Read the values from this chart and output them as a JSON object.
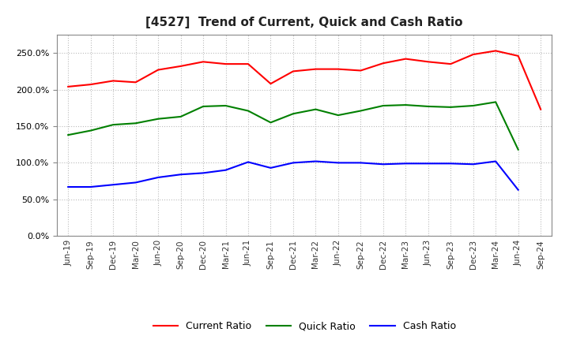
{
  "title": "[4527]  Trend of Current, Quick and Cash Ratio",
  "labels": [
    "Jun-19",
    "Sep-19",
    "Dec-19",
    "Mar-20",
    "Jun-20",
    "Sep-20",
    "Dec-20",
    "Mar-21",
    "Jun-21",
    "Sep-21",
    "Dec-21",
    "Mar-22",
    "Jun-22",
    "Sep-22",
    "Dec-22",
    "Mar-23",
    "Jun-23",
    "Sep-23",
    "Dec-23",
    "Mar-24",
    "Jun-24",
    "Sep-24"
  ],
  "current_ratio": [
    2.04,
    2.07,
    2.12,
    2.1,
    2.27,
    2.32,
    2.38,
    2.35,
    2.35,
    2.08,
    2.25,
    2.28,
    2.28,
    2.26,
    2.36,
    2.42,
    2.38,
    2.35,
    2.48,
    2.53,
    2.46,
    1.73
  ],
  "quick_ratio": [
    1.38,
    1.44,
    1.52,
    1.54,
    1.6,
    1.63,
    1.77,
    1.78,
    1.71,
    1.55,
    1.67,
    1.73,
    1.65,
    1.71,
    1.78,
    1.79,
    1.77,
    1.76,
    1.78,
    1.83,
    1.18,
    null
  ],
  "cash_ratio": [
    0.67,
    0.67,
    0.7,
    0.73,
    0.8,
    0.84,
    0.86,
    0.9,
    1.01,
    0.93,
    1.0,
    1.02,
    1.0,
    1.0,
    0.98,
    0.99,
    0.99,
    0.99,
    0.98,
    1.02,
    0.63,
    null
  ],
  "ylim": [
    0.0,
    2.75
  ],
  "yticks": [
    0.0,
    0.5,
    1.0,
    1.5,
    2.0,
    2.5
  ],
  "colors": {
    "current": "#ff0000",
    "quick": "#008000",
    "cash": "#0000ff"
  },
  "background_color": "#ffffff",
  "plot_bg_color": "#ffffff",
  "grid_color": "#bbbbbb",
  "legend_labels": [
    "Current Ratio",
    "Quick Ratio",
    "Cash Ratio"
  ]
}
